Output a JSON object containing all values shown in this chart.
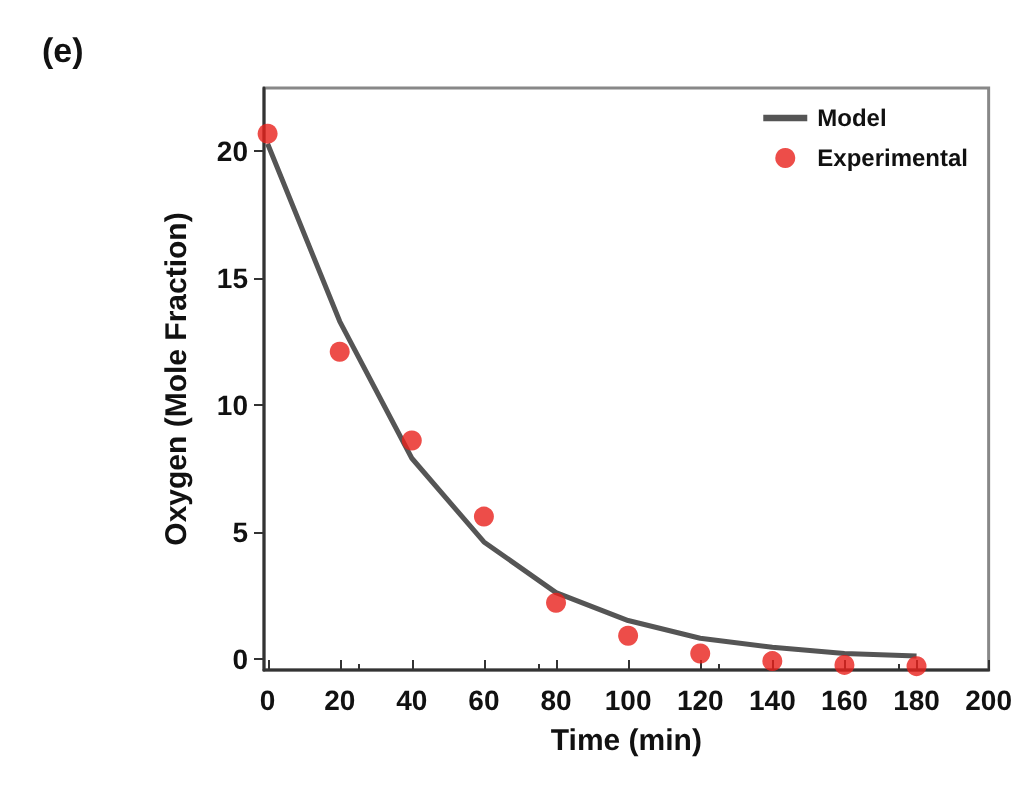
{
  "chart_data": {
    "type": "scatter",
    "title": "(e)",
    "xlabel": "Time (min)",
    "ylabel": "Oxygen (Mole Fraction)",
    "x": [
      0,
      20,
      40,
      60,
      80,
      100,
      120,
      140,
      160,
      180
    ],
    "series": [
      {
        "name": "Model",
        "type": "line",
        "color": "#555555",
        "marker": "none",
        "line_style": "solid",
        "values": [
          20.3,
          13.3,
          7.9,
          4.6,
          2.6,
          1.5,
          0.8,
          0.45,
          0.2,
          0.1
        ]
      },
      {
        "name": "Experimental",
        "color": "#e8201c",
        "marker": "circle",
        "values": [
          20.7,
          12.1,
          8.6,
          5.6,
          2.2,
          0.9,
          0.2,
          -0.1,
          -0.25,
          -0.3
        ]
      }
    ],
    "xlim": [
      -1,
      200
    ],
    "xticks": [
      0,
      20,
      40,
      60,
      80,
      100,
      120,
      140,
      160,
      180,
      200
    ],
    "ylim": [
      -0.45,
      22.5
    ],
    "yticks": [
      0,
      5,
      10,
      15,
      20
    ],
    "grid": false,
    "legend": "top right"
  }
}
